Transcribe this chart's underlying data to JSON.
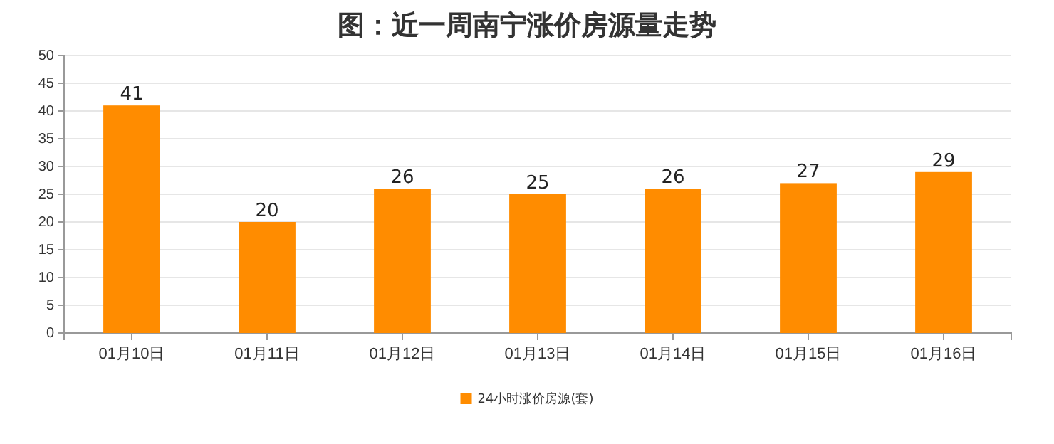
{
  "chart_data": {
    "type": "bar",
    "title": "图：近一周南宁涨价房源量走势",
    "categories": [
      "01月10日",
      "01月11日",
      "01月12日",
      "01月13日",
      "01月14日",
      "01月15日",
      "01月16日"
    ],
    "series": [
      {
        "name": "24小时涨价房源(套)",
        "color": "#ff8c00",
        "values": [
          41,
          20,
          26,
          25,
          26,
          27,
          29
        ]
      }
    ],
    "ylim": [
      0,
      50
    ],
    "yticks": [
      0,
      5,
      10,
      15,
      20,
      25,
      30,
      35,
      40,
      45,
      50
    ],
    "grid": "y",
    "legend": "bottom",
    "data_labels": true
  }
}
